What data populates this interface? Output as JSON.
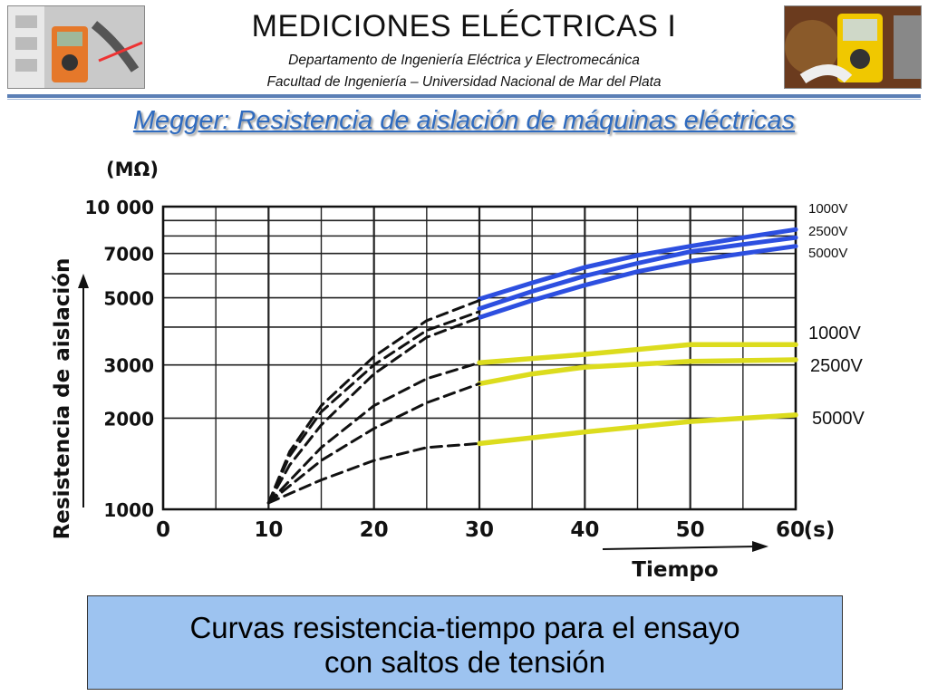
{
  "header": {
    "title": "MEDICIONES ELÉCTRICAS I",
    "subtitle_line1": "Departamento de Ingeniería Eléctrica y Electromecánica",
    "subtitle_line2": "Facultad de Ingeniería – Universidad Nacional de Mar del Plata"
  },
  "slide_heading": "Megger: Resistencia de aislación de máquinas eléctricas",
  "caption": {
    "line1": "Curvas resistencia-tiempo para el ensayo",
    "line2": "con saltos de tensión"
  },
  "colors": {
    "accent": "#5b7fb6",
    "heading": "#2f6bbf",
    "blue_series": "#2d4fe0",
    "yellow_series": "#dcdc1e",
    "caption_bg": "#9dc3f0"
  },
  "chart_data": {
    "type": "line",
    "yscale": "log",
    "xlabel": "Tiempo",
    "ylabel": "Resistencia de aislación",
    "x_unit": "(s)",
    "y_unit": "(MΩ)",
    "x_ticks": [
      "0",
      "10",
      "20",
      "30",
      "40",
      "50",
      "60"
    ],
    "y_ticks": [
      "1000",
      "2000",
      "3000",
      "5000",
      "7000",
      "10 000"
    ],
    "xlim": [
      0,
      60
    ],
    "ylim": [
      1000,
      10000
    ],
    "grid": true,
    "series": [
      {
        "name": "1000V",
        "color": "#2d4fe0",
        "style": "solid",
        "x": [
          30,
          35,
          40,
          45,
          50,
          55,
          60
        ],
        "y": [
          4950,
          5600,
          6300,
          6900,
          7400,
          7900,
          8400
        ]
      },
      {
        "name": "2500V",
        "color": "#2d4fe0",
        "style": "solid",
        "x": [
          30,
          35,
          40,
          45,
          50,
          55,
          60
        ],
        "y": [
          4600,
          5250,
          5900,
          6500,
          7100,
          7500,
          7900
        ]
      },
      {
        "name": "5000V",
        "color": "#2d4fe0",
        "style": "solid",
        "x": [
          30,
          35,
          40,
          45,
          50,
          55,
          60
        ],
        "y": [
          4300,
          4900,
          5500,
          6100,
          6600,
          7000,
          7400
        ]
      },
      {
        "name": "1000V",
        "color": "#dcdc1e",
        "style": "solid",
        "x": [
          30,
          40,
          50,
          55,
          60
        ],
        "y": [
          3050,
          3250,
          3500,
          3500,
          3500
        ]
      },
      {
        "name": "2500V",
        "color": "#dcdc1e",
        "style": "solid",
        "x": [
          30,
          35,
          40,
          50,
          60
        ],
        "y": [
          2600,
          2800,
          2950,
          3080,
          3120
        ]
      },
      {
        "name": "5000V",
        "color": "#dcdc1e",
        "style": "solid",
        "x": [
          30,
          40,
          50,
          55,
          60
        ],
        "y": [
          1650,
          1800,
          1950,
          2000,
          2050
        ]
      },
      {
        "color": "#111111",
        "style": "dashed",
        "x": [
          10,
          12,
          15,
          20,
          25,
          30
        ],
        "y": [
          1050,
          1550,
          2200,
          3200,
          4200,
          4900
        ]
      },
      {
        "color": "#111111",
        "style": "dashed",
        "x": [
          10,
          12,
          15,
          20,
          25,
          30
        ],
        "y": [
          1050,
          1500,
          2100,
          3000,
          3900,
          4500
        ]
      },
      {
        "color": "#111111",
        "style": "dashed",
        "x": [
          10,
          12,
          15,
          20,
          25,
          30
        ],
        "y": [
          1050,
          1400,
          1900,
          2800,
          3700,
          4300
        ]
      },
      {
        "color": "#111111",
        "style": "dashed",
        "x": [
          10,
          15,
          20,
          25,
          30
        ],
        "y": [
          1050,
          1600,
          2200,
          2700,
          3050
        ]
      },
      {
        "color": "#111111",
        "style": "dashed",
        "x": [
          10,
          15,
          20,
          25,
          30
        ],
        "y": [
          1050,
          1450,
          1850,
          2250,
          2600
        ]
      },
      {
        "color": "#111111",
        "style": "dashed",
        "x": [
          10,
          15,
          20,
          25,
          30
        ],
        "y": [
          1050,
          1250,
          1450,
          1600,
          1650
        ]
      }
    ],
    "labels": [
      {
        "text": "1000V",
        "series": 0,
        "size": "small"
      },
      {
        "text": "2500V",
        "series": 1,
        "size": "small"
      },
      {
        "text": "5000V",
        "series": 2,
        "size": "small"
      },
      {
        "text": "1000V",
        "series": 3,
        "size": "large"
      },
      {
        "text": "2500V",
        "series": 4,
        "size": "large"
      },
      {
        "text": "5000V",
        "series": 5,
        "size": "large"
      }
    ]
  }
}
